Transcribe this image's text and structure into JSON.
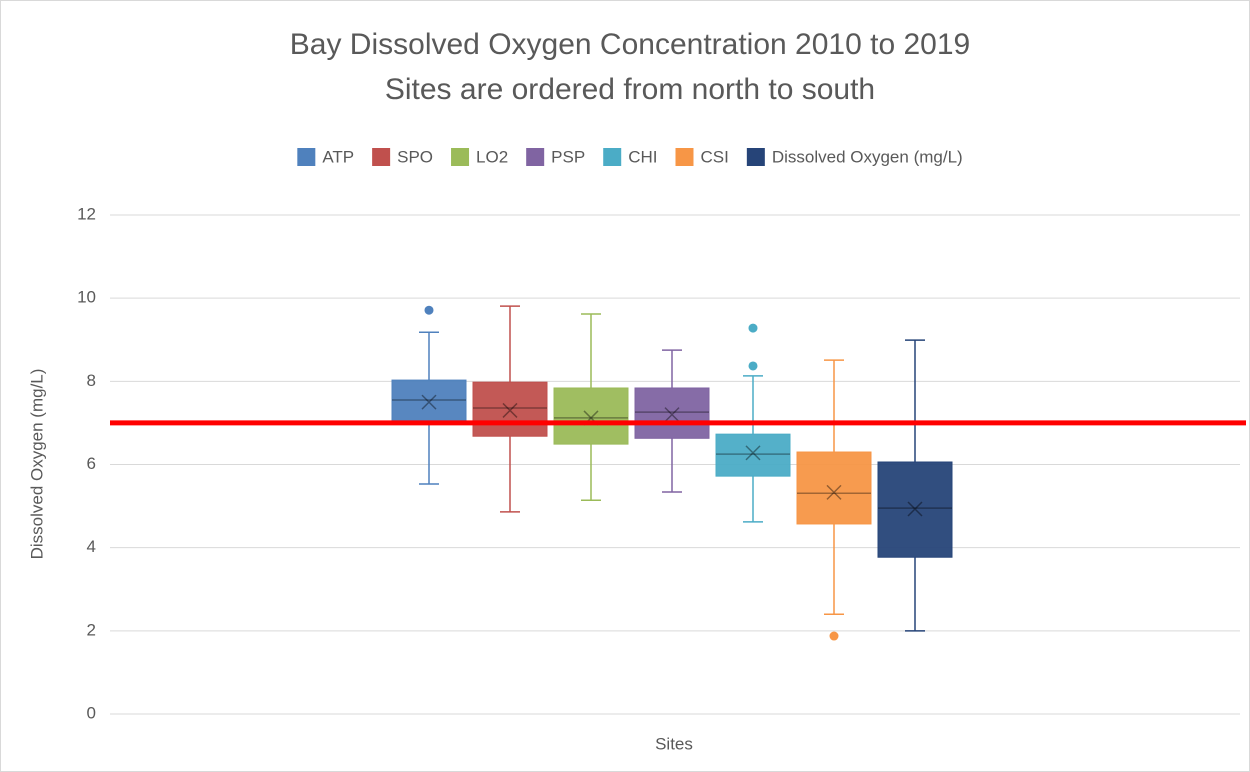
{
  "chart_data": {
    "type": "box",
    "title": "Bay Dissolved Oxygen Concentration 2010 to 2019",
    "subtitle": "Sites are ordered from north to south",
    "x_label": "Sites",
    "y_label": "Dissolved Oxygen (mg/L)",
    "ylim": [
      0,
      12
    ],
    "yticks": [
      0,
      2,
      4,
      6,
      8,
      10,
      12
    ],
    "grid": true,
    "legend": "top",
    "series": [
      {
        "name": "ATP",
        "color": "#4f81bd",
        "low": 5.53,
        "q1": 7.0,
        "median": 7.55,
        "q3": 8.03,
        "high": 9.18,
        "mean": 7.5,
        "outliers": [
          9.71
        ]
      },
      {
        "name": "SPO",
        "color": "#c0504d",
        "low": 4.86,
        "q1": 6.68,
        "median": 7.36,
        "q3": 7.98,
        "high": 9.81,
        "mean": 7.3
      },
      {
        "name": "LO2",
        "color": "#9bbb59",
        "low": 5.14,
        "q1": 6.49,
        "median": 7.12,
        "q3": 7.84,
        "high": 9.62,
        "mean": 7.12
      },
      {
        "name": "PSP",
        "color": "#8064a2",
        "low": 5.34,
        "q1": 6.63,
        "median": 7.26,
        "q3": 7.84,
        "high": 8.75,
        "mean": 7.2
      },
      {
        "name": "CHI",
        "color": "#4bacc6",
        "low": 4.62,
        "q1": 5.72,
        "median": 6.25,
        "q3": 6.73,
        "high": 8.13,
        "mean": 6.28,
        "outliers": [
          8.37,
          9.28
        ]
      },
      {
        "name": "CSI",
        "color": "#f79646",
        "low": 2.4,
        "q1": 4.57,
        "median": 5.31,
        "q3": 6.3,
        "high": 8.51,
        "mean": 5.33,
        "outliers": [
          1.875
        ]
      },
      {
        "name": "Dissolved Oxygen (mg/L)",
        "color": "#264478",
        "low": 2.0,
        "q1": 3.77,
        "median": 4.95,
        "q3": 6.06,
        "high": 8.99,
        "mean": 4.93
      }
    ],
    "reference_line": {
      "value": 7,
      "color": "#ff0000"
    }
  }
}
